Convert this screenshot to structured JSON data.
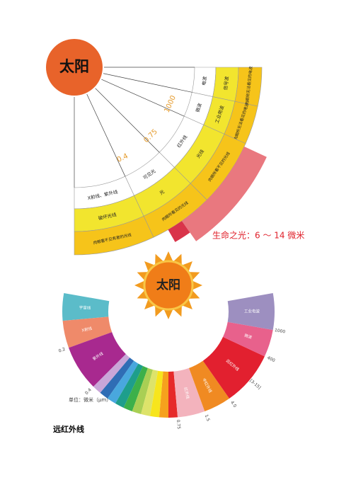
{
  "diagram1": {
    "sun": "太阳",
    "sectors": [
      {
        "inner": "电波",
        "middle": "信号波",
        "outer": "肉眼所无法看见的电波"
      },
      {
        "inner": "微波",
        "middle": "工业用波",
        "outer": "肉眼所无法看见的电波"
      },
      {
        "inner": "红外线",
        "middle": "光线",
        "outer": "肉眼所看不见的光线"
      },
      {
        "inner": "可见光",
        "middle": "光",
        "outer": "肉眼所看见的光线"
      },
      {
        "inner": "X射线、紫外线",
        "middle": "破坏光线",
        "outer": "肉眼看不见有害的光线"
      }
    ],
    "boundary_labels": [
      "1000",
      "0.75",
      "0.4"
    ],
    "highlight": "生命之光：6 ～ 14 微米"
  },
  "diagram2": {
    "sun": "太阳",
    "segments": [
      {
        "label": "宇宙线",
        "color": "#5bbcc9"
      },
      {
        "label": "X射线",
        "color": "#ef8a6a"
      },
      {
        "label": "紫外线",
        "color": "#a8298f"
      },
      {
        "color": "#c9a6d8"
      },
      {
        "color": "#2f6db5"
      },
      {
        "color": "#49a7de"
      },
      {
        "color": "#1e9e8c"
      },
      {
        "color": "#3cb04a"
      },
      {
        "color": "#a9cf54"
      },
      {
        "color": "#dde36a"
      },
      {
        "color": "#f7e51c"
      },
      {
        "color": "#f6a11d"
      },
      {
        "color": "#e62a2a"
      },
      {
        "label": "红外线",
        "color": "#f3b3bd"
      },
      {
        "label": "中红外线",
        "color": "#f08a22"
      },
      {
        "label": "远红外线",
        "color": "#e2202f"
      },
      {
        "label": "微波",
        "color": "#e8618c"
      },
      {
        "label": "工业电波",
        "color": "#9d8fc0"
      }
    ],
    "ticks": [
      "0.2",
      "0.4",
      "0.75",
      "1.5",
      "4.0",
      "[3-15]",
      "400",
      "1000"
    ],
    "unit": "单位：微米（μm）"
  },
  "caption": "远红外线"
}
